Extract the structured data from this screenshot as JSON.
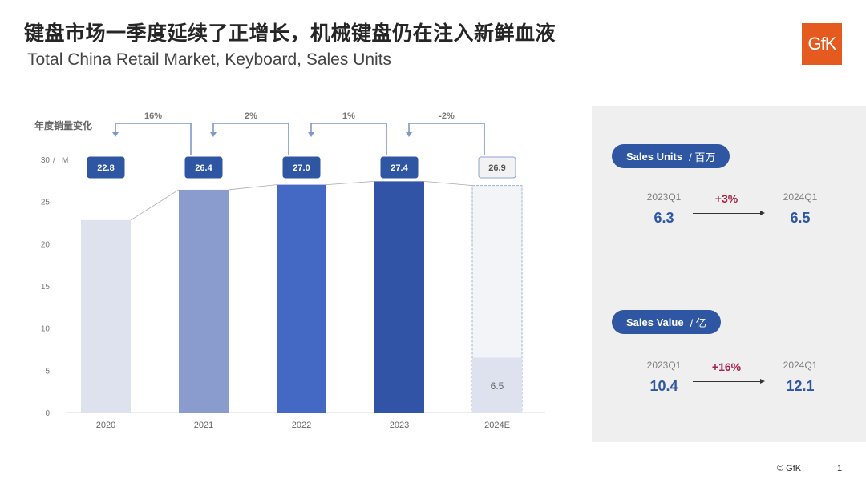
{
  "title": "键盘市场一季度延续了正增长，机械键盘仍在注入新鲜血液",
  "subtitle": "Total China Retail Market, Keyboard, Sales Units",
  "logo_text": "GfK",
  "footer": {
    "copyright": "© GfK",
    "page": "1"
  },
  "chart_data": {
    "type": "bar",
    "title": "年度销量变化",
    "ylabel": "M",
    "ylim": [
      0,
      30
    ],
    "yticks": [
      0,
      5,
      10,
      15,
      20,
      25,
      30
    ],
    "categories": [
      "2020",
      "2021",
      "2022",
      "2023",
      "2024E"
    ],
    "values": [
      22.8,
      26.4,
      27.0,
      27.4,
      26.9
    ],
    "value_labels": [
      "22.8",
      "26.4",
      "27.0",
      "27.4",
      "26.9"
    ],
    "estimate_q1": {
      "value": 6.5,
      "label": "6.5"
    },
    "bar_colors": [
      "#dde2ee",
      "#8a9cce",
      "#4369c4",
      "#3254a6",
      "#dde2ee"
    ],
    "growth_labels": [
      "16%",
      "2%",
      "1%",
      "-2%"
    ],
    "accent": "#2f56a3",
    "grid": false
  },
  "kpis": [
    {
      "badge": "Sales Units",
      "unit": "/  百万",
      "from_label": "2023Q1",
      "from_value": "6.3",
      "change": "+3%",
      "to_label": "2024Q1",
      "to_value": "6.5"
    },
    {
      "badge": "Sales Value",
      "unit": "/  亿",
      "from_label": "2023Q1",
      "from_value": "10.4",
      "change": "+16%",
      "to_label": "2024Q1",
      "to_value": "12.1"
    }
  ]
}
